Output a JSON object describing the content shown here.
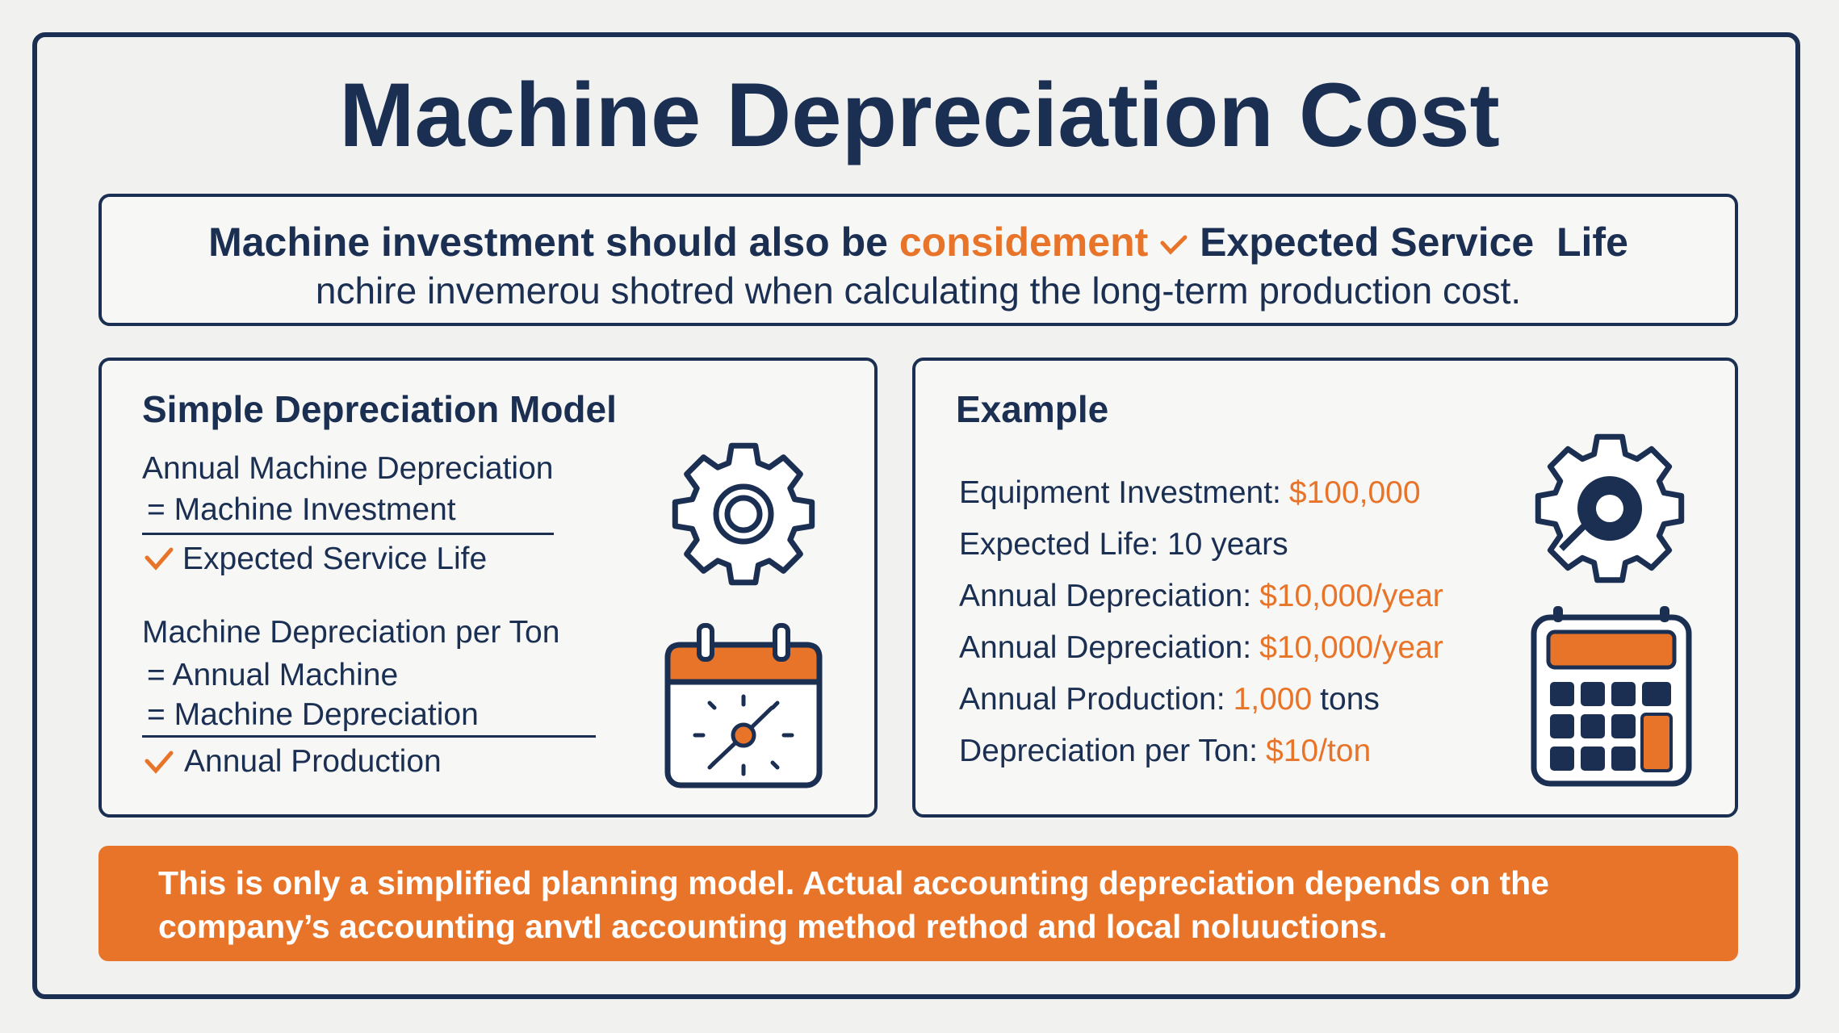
{
  "title": "Machine Depreciation Cost",
  "intro": {
    "line1": {
      "text": "Machine investment should also be",
      "highlight": "considement",
      "after": "Expected Service  Life"
    },
    "line2": "nchire invemerou shotred when calculating the long-term production cost."
  },
  "left_panel": {
    "title": "Simple Depreciation Model",
    "formulas": [
      {
        "name": "Annual Machine Depreciation",
        "lines": [
          "= Machine Investment"
        ],
        "divisor": "Expected Service Life"
      },
      {
        "name": "Machine Depreciation per Ton",
        "lines": [
          "= Annual Machine",
          "=  Machine Depreciation"
        ],
        "divisor": "Annual Production"
      }
    ]
  },
  "right_panel": {
    "title": "Example",
    "rows": [
      {
        "label": "Equipment Investment:",
        "value": "$100,000"
      },
      {
        "label": "Expected Life: 10 years"
      },
      {
        "label": "Annual Depreciation:",
        "value": "$10,000/year"
      },
      {
        "label": "Annual Depreciation:",
        "value": "$10,000/year"
      },
      {
        "label": "Annual Production:",
        "value": "1,000",
        "suffix": "tons"
      },
      {
        "label": "Depreciation per Ton:",
        "value": "$10/ton"
      }
    ]
  },
  "footer": {
    "lines": [
      "This is only a simplified planning model. Actual accounting depreciation depends on the",
      "company’s accounting anvtl accounting method rethod and local noluuctions."
    ]
  }
}
